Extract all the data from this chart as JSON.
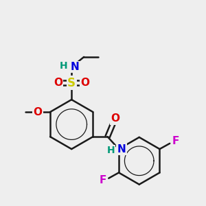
{
  "bg_color": "#eeeeee",
  "bond_color": "#1a1a1a",
  "bond_width": 1.8,
  "colors": {
    "C": "#1a1a1a",
    "N": "#0000dd",
    "O": "#dd0000",
    "S": "#cccc00",
    "F": "#cc00cc",
    "H": "#009977"
  },
  "font_size": 10
}
